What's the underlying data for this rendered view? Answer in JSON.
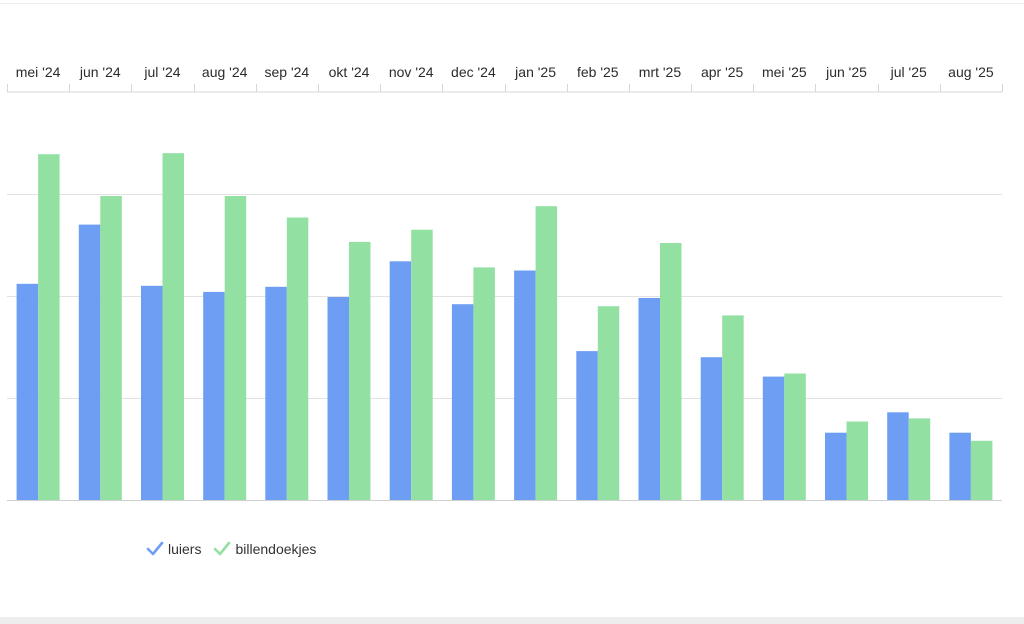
{
  "chart_data": {
    "type": "bar",
    "title": "",
    "xlabel": "",
    "ylabel": "",
    "categories": [
      "mei '24",
      "jun '24",
      "jul '24",
      "aug '24",
      "sep '24",
      "okt '24",
      "nov '24",
      "dec '24",
      "jan '25",
      "feb '25",
      "mrt '25",
      "apr '25",
      "mei '25",
      "jun '25",
      "jul '25",
      "aug '25"
    ],
    "series": [
      {
        "name": "luiers",
        "color": "#6e9ef4",
        "values": [
          212,
          270,
          210,
          204,
          209,
          199,
          234,
          192,
          225,
          146,
          198,
          140,
          121,
          66,
          86,
          66
        ]
      },
      {
        "name": "billendoekjes",
        "color": "#93e0a3",
        "values": [
          339,
          298,
          340,
          298,
          277,
          253,
          265,
          228,
          288,
          190,
          252,
          181,
          124,
          77,
          80,
          58
        ]
      }
    ],
    "ylim": [
      0,
      400
    ],
    "y_gridlines": [
      0,
      100,
      200,
      300
    ],
    "grid": true,
    "legend_position": "bottom-left"
  },
  "legend": {
    "items": [
      {
        "label": "luiers",
        "color": "#6e9ef4"
      },
      {
        "label": "billendoekjes",
        "color": "#93e0a3"
      }
    ]
  }
}
